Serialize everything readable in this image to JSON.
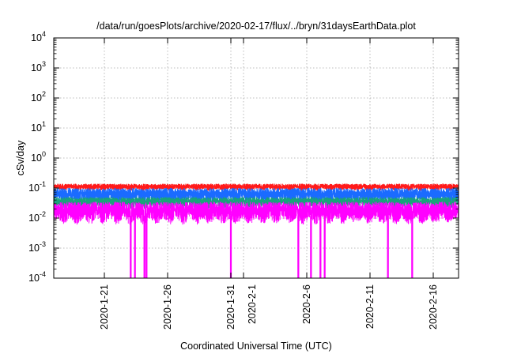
{
  "chart_data": {
    "type": "line",
    "title": "/data/run/goesPlots/archive/2020-02-17/flux/../bryn/31daysEarthData.plot",
    "xlabel": "Coordinated Universal Time (UTC)",
    "ylabel": "cSv/day",
    "yscale": "log",
    "ylim": [
      0.0001,
      10000
    ],
    "xlim": [
      "2020-01-17",
      "2020-02-18"
    ],
    "grid": true,
    "y_tick_labels": [
      {
        "base": "10",
        "exp": "-4"
      },
      {
        "base": "10",
        "exp": "-3"
      },
      {
        "base": "10",
        "exp": "-2"
      },
      {
        "base": "10",
        "exp": "-1"
      },
      {
        "base": "10",
        "exp": "0"
      },
      {
        "base": "10",
        "exp": "1"
      },
      {
        "base": "10",
        "exp": "2"
      },
      {
        "base": "10",
        "exp": "3"
      },
      {
        "base": "10",
        "exp": "4"
      }
    ],
    "x_tick_labels": [
      "2020-1-21",
      "2020-1-26",
      "2020-1-31",
      "2020-2-1",
      "2020-2-6",
      "2020-2-11",
      "2020-2-16"
    ],
    "x_tick_dates": [
      "2020-01-21",
      "2020-01-26",
      "2020-01-31",
      "2020-02-01",
      "2020-02-06",
      "2020-02-11",
      "2020-02-16"
    ],
    "series": [
      {
        "color": "#ff1a1a",
        "typical_low": 0.08,
        "typical_high": 0.14
      },
      {
        "color": "#1a6bff",
        "typical_low": 0.03,
        "typical_high": 0.1
      },
      {
        "color": "#19a37a",
        "typical_low": 0.02,
        "typical_high": 0.05
      },
      {
        "color": "#ff00ff",
        "typical_low": 0.006,
        "typical_high": 0.035
      }
    ],
    "dropouts": [
      "2020-01-23 02:00",
      "2020-01-23 10:00",
      "2020-01-24 04:00",
      "2020-01-24 08:00",
      "2020-01-31 00:00",
      "2020-02-05 08:00",
      "2020-02-06 08:00",
      "2020-02-07 02:00",
      "2020-02-07 10:00",
      "2020-02-12 10:00",
      "2020-02-14 08:00"
    ]
  }
}
